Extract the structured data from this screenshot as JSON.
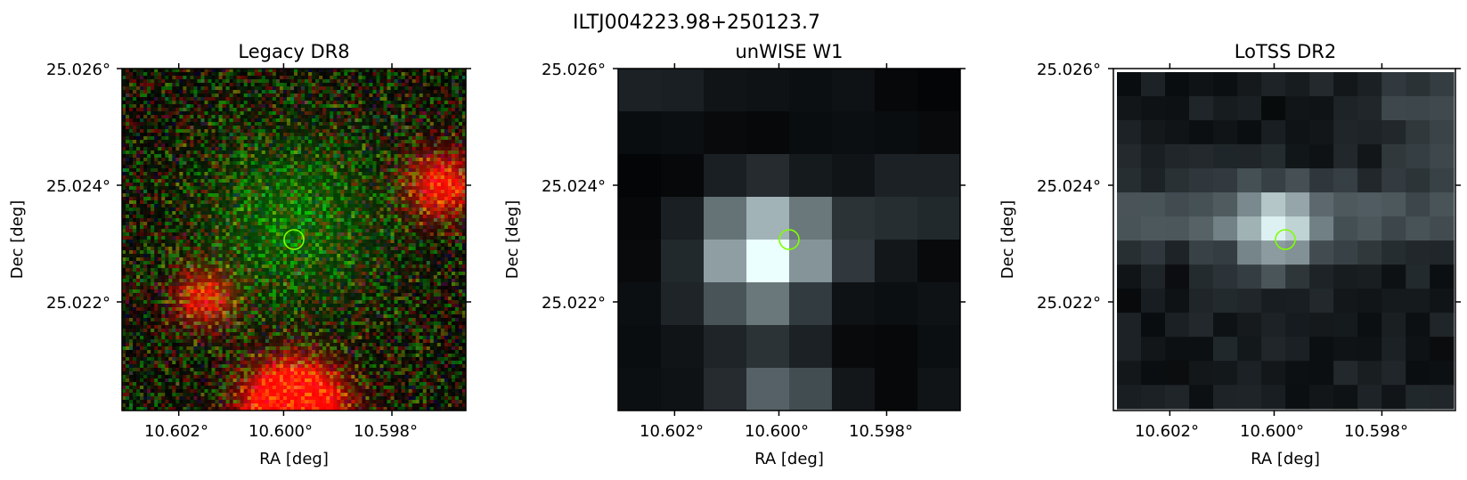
{
  "figure": {
    "suptitle": "ILTJ004223.98+250123.7",
    "panels": [
      {
        "title": "Legacy DR8",
        "xlabel": "RA [deg]",
        "ylabel": "Dec [deg]",
        "xticks": [
          "10.602°",
          "10.600°",
          "10.598°"
        ],
        "yticks": [
          "25.026°",
          "25.024°",
          "25.022°"
        ],
        "image_kind": "rgb-noise",
        "marker_color": "#7fff00"
      },
      {
        "title": "unWISE W1",
        "xlabel": "RA [deg]",
        "ylabel": "Dec [deg]",
        "xticks": [
          "10.602°",
          "10.600°",
          "10.598°"
        ],
        "yticks": [
          "25.026°",
          "25.024°",
          "25.022°"
        ],
        "image_kind": "grayscale-coarse",
        "marker_color": "#7fff00"
      },
      {
        "title": "LoTSS DR2",
        "xlabel": "RA [deg]",
        "ylabel": "Dec [deg]",
        "xticks": [
          "10.602°",
          "10.600°",
          "10.598°"
        ],
        "yticks": [
          "25.026°",
          "25.024°",
          "25.022°"
        ],
        "image_kind": "grayscale-fine",
        "marker_color": "#7fff00"
      }
    ]
  }
}
